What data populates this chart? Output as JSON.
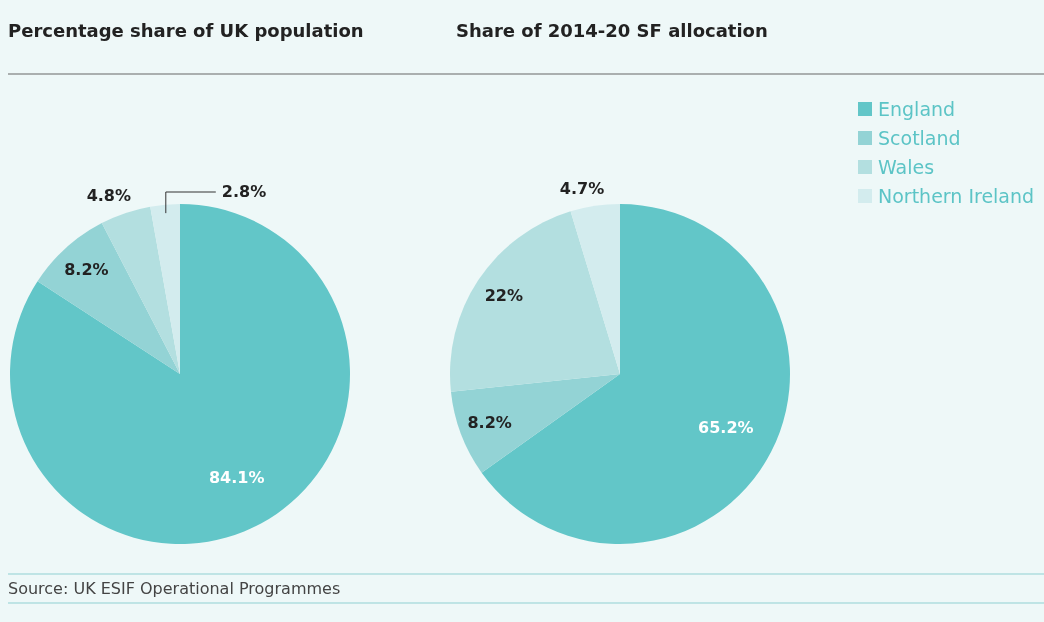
{
  "chart_data": [
    {
      "type": "pie",
      "title": "Percentage share of UK population",
      "categories": [
        null,
        null,
        null,
        null
      ],
      "values": [
        84.1,
        8.2,
        4.8,
        2.8
      ],
      "colors": [
        "#62c6c8",
        "#93d3d5",
        "#b3dfe0",
        "#d3ecee"
      ],
      "value_labels": [
        "84.1%",
        "8.2%",
        "4.8%",
        "2.8%"
      ],
      "annotations": [
        "Source: UK ESIF Operational Programmes"
      ]
    },
    {
      "type": "pie",
      "title": "Share of 2014-20 SF allocation",
      "categories": [
        "England",
        "Scotland",
        "Wales",
        "Northern Ireland"
      ],
      "values": [
        65.2,
        8.2,
        22,
        4.7
      ],
      "colors": [
        "#62c6c8",
        "#93d3d5",
        "#b3dfe0",
        "#d3ecee"
      ],
      "value_labels": [
        "65.2%",
        "8.2%",
        "22%",
        "4.7%"
      ],
      "legend": "top right"
    }
  ]
}
